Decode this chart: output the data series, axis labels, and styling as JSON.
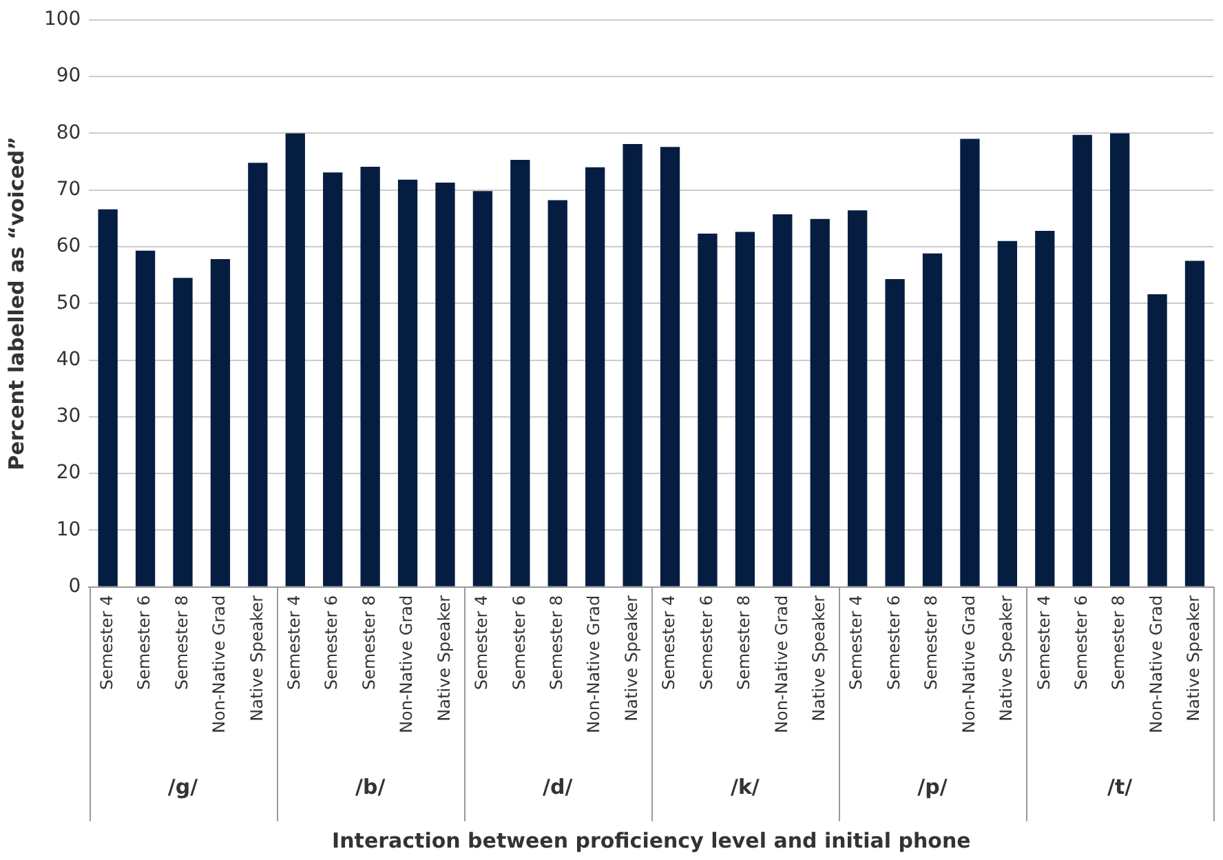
{
  "chart_data": {
    "type": "bar",
    "xlabel": "Interaction between proficiency level and initial phone",
    "ylabel": "Percent labelled as “voiced”",
    "categories": [
      "Semester 4",
      "Semester 6",
      "Semester 8",
      "Non-Native Grad",
      "Native Speaker",
      "Semester 4",
      "Semester 6",
      "Semester 8",
      "Non-Native Grad",
      "Native Speaker",
      "Semester 4",
      "Semester 6",
      "Semester 8",
      "Non-Native Grad",
      "Native Speaker",
      "Semester 4",
      "Semester 6",
      "Semester 8",
      "Non-Native Grad",
      "Native Speaker",
      "Semester 4",
      "Semester 6",
      "Semester 8",
      "Non-Native Grad",
      "Native Speaker",
      "Semester 4",
      "Semester 6",
      "Semester 8",
      "Non-Native Grad",
      "Native Speaker"
    ],
    "values": [
      66.6,
      59.3,
      54.5,
      57.8,
      74.8,
      80,
      73.1,
      74.1,
      71.8,
      71.3,
      69.8,
      75.3,
      68.2,
      74.0,
      78.1,
      77.6,
      62.3,
      62.6,
      65.7,
      64.9,
      66.4,
      54.3,
      58.8,
      79.0,
      61.0,
      62.8,
      79.7,
      80,
      51.6,
      57.5
    ],
    "color": "#061d42",
    "ylim": [
      0,
      100
    ],
    "yticks": [
      0,
      10,
      20,
      30,
      40,
      50,
      60,
      70,
      80,
      90,
      100
    ],
    "grid": "y",
    "annotations": [
      "/g/",
      "/b/",
      "/d/",
      "/k/",
      "/p/",
      "/t/"
    ]
  }
}
